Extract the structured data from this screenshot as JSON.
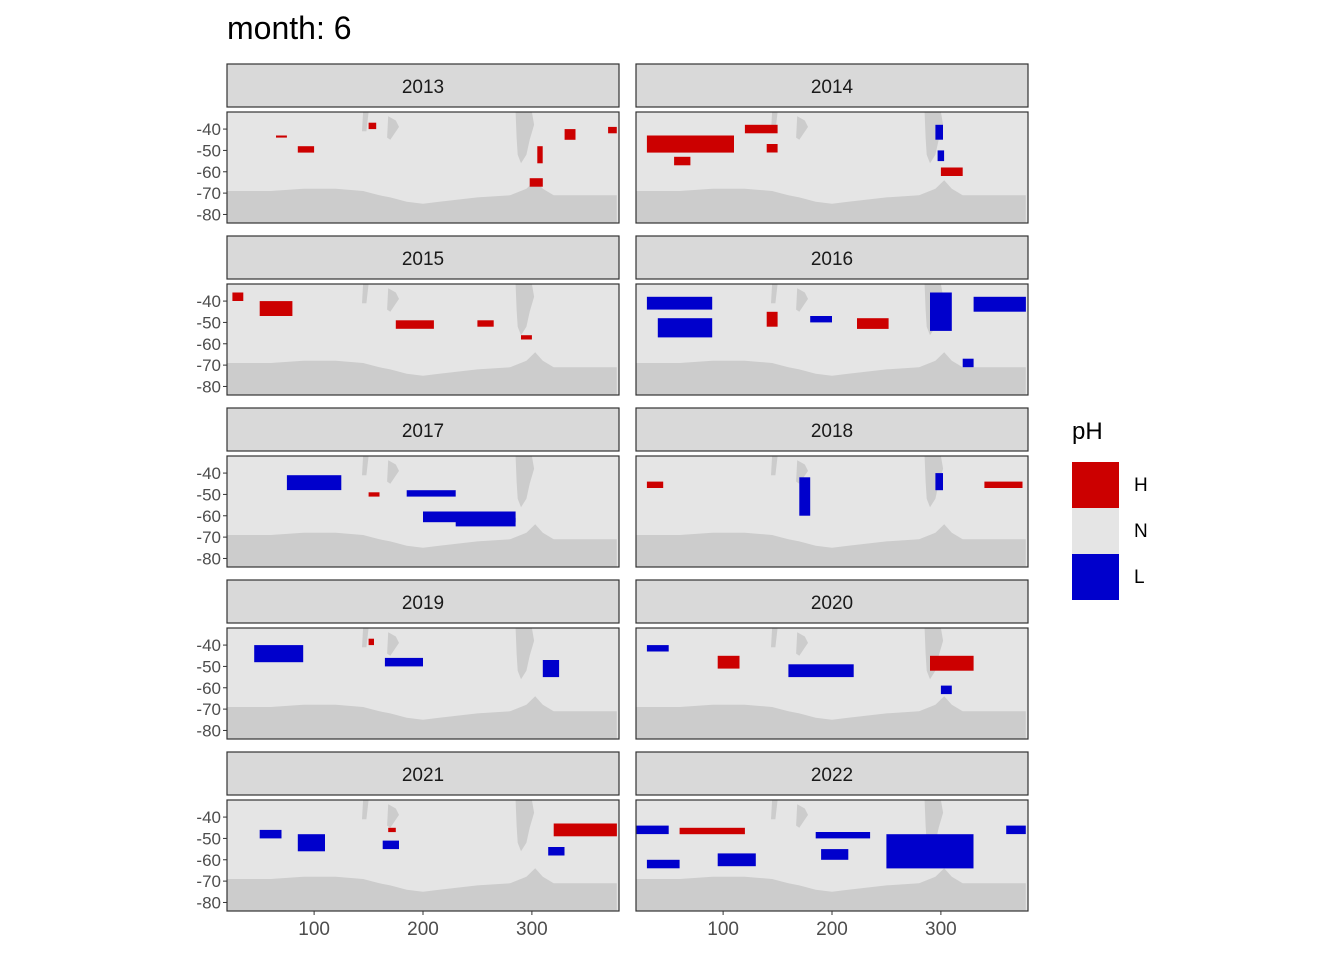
{
  "title": "month: 6",
  "legend": {
    "title": "pH",
    "items": [
      {
        "label": "H",
        "color": "#CC0000"
      },
      {
        "label": "N",
        "color": "#E5E5E5"
      },
      {
        "label": "L",
        "color": "#0000CC"
      }
    ]
  },
  "colors": {
    "land": "#CCCCCC",
    "ocean": "#E5E5E5",
    "strip_bg": "#D9D9D9",
    "frame": "#333333",
    "tick_text": "#4D4D4D"
  },
  "chart_data": {
    "type": "heatmap",
    "facet_by": "year",
    "panels": [
      "2013",
      "2014",
      "2015",
      "2016",
      "2017",
      "2018",
      "2019",
      "2020",
      "2021",
      "2022"
    ],
    "x_ticks": [
      100,
      200,
      300
    ],
    "y_ticks": [
      -40,
      -50,
      -60,
      -70,
      -80
    ],
    "xlim": [
      20,
      380
    ],
    "ylim": [
      -84,
      -32
    ],
    "categories": [
      "H",
      "N",
      "L"
    ],
    "anomalies": {
      "2013": [
        {
          "cat": "H",
          "x": [
            65,
            75
          ],
          "y": [
            -43,
            -44
          ]
        },
        {
          "cat": "H",
          "x": [
            85,
            100
          ],
          "y": [
            -48,
            -51
          ]
        },
        {
          "cat": "H",
          "x": [
            150,
            157
          ],
          "y": [
            -37,
            -40
          ]
        },
        {
          "cat": "H",
          "x": [
            305,
            310
          ],
          "y": [
            -48,
            -56
          ]
        },
        {
          "cat": "H",
          "x": [
            298,
            310
          ],
          "y": [
            -63,
            -67
          ]
        },
        {
          "cat": "H",
          "x": [
            330,
            340
          ],
          "y": [
            -40,
            -45
          ]
        },
        {
          "cat": "H",
          "x": [
            370,
            378
          ],
          "y": [
            -39,
            -42
          ]
        }
      ],
      "2014": [
        {
          "cat": "H",
          "x": [
            30,
            110
          ],
          "y": [
            -43,
            -51
          ]
        },
        {
          "cat": "H",
          "x": [
            55,
            70
          ],
          "y": [
            -53,
            -57
          ]
        },
        {
          "cat": "H",
          "x": [
            120,
            150
          ],
          "y": [
            -38,
            -42
          ]
        },
        {
          "cat": "H",
          "x": [
            140,
            150
          ],
          "y": [
            -47,
            -51
          ]
        },
        {
          "cat": "H",
          "x": [
            300,
            320
          ],
          "y": [
            -58,
            -62
          ]
        },
        {
          "cat": "L",
          "x": [
            295,
            302
          ],
          "y": [
            -38,
            -45
          ]
        },
        {
          "cat": "L",
          "x": [
            297,
            303
          ],
          "y": [
            -50,
            -55
          ]
        }
      ],
      "2015": [
        {
          "cat": "H",
          "x": [
            25,
            35
          ],
          "y": [
            -36,
            -40
          ]
        },
        {
          "cat": "H",
          "x": [
            50,
            80
          ],
          "y": [
            -40,
            -47
          ]
        },
        {
          "cat": "H",
          "x": [
            175,
            210
          ],
          "y": [
            -49,
            -53
          ]
        },
        {
          "cat": "H",
          "x": [
            250,
            265
          ],
          "y": [
            -49,
            -52
          ]
        },
        {
          "cat": "H",
          "x": [
            290,
            300
          ],
          "y": [
            -56,
            -58
          ]
        }
      ],
      "2016": [
        {
          "cat": "L",
          "x": [
            30,
            90
          ],
          "y": [
            -38,
            -44
          ]
        },
        {
          "cat": "L",
          "x": [
            40,
            90
          ],
          "y": [
            -48,
            -57
          ]
        },
        {
          "cat": "H",
          "x": [
            140,
            150
          ],
          "y": [
            -45,
            -52
          ]
        },
        {
          "cat": "H",
          "x": [
            223,
            252
          ],
          "y": [
            -48,
            -53
          ]
        },
        {
          "cat": "L",
          "x": [
            180,
            200
          ],
          "y": [
            -47,
            -50
          ]
        },
        {
          "cat": "L",
          "x": [
            290,
            310
          ],
          "y": [
            -36,
            -54
          ]
        },
        {
          "cat": "L",
          "x": [
            330,
            378
          ],
          "y": [
            -38,
            -45
          ]
        },
        {
          "cat": "L",
          "x": [
            320,
            330
          ],
          "y": [
            -67,
            -71
          ]
        }
      ],
      "2017": [
        {
          "cat": "L",
          "x": [
            75,
            125
          ],
          "y": [
            -41,
            -48
          ]
        },
        {
          "cat": "L",
          "x": [
            185,
            230
          ],
          "y": [
            -48,
            -51
          ]
        },
        {
          "cat": "L",
          "x": [
            200,
            285
          ],
          "y": [
            -58,
            -63
          ]
        },
        {
          "cat": "L",
          "x": [
            230,
            285
          ],
          "y": [
            -61,
            -65
          ]
        },
        {
          "cat": "H",
          "x": [
            150,
            160
          ],
          "y": [
            -49,
            -51
          ]
        }
      ],
      "2018": [
        {
          "cat": "H",
          "x": [
            30,
            45
          ],
          "y": [
            -44,
            -47
          ]
        },
        {
          "cat": "L",
          "x": [
            170,
            180
          ],
          "y": [
            -42,
            -60
          ]
        },
        {
          "cat": "L",
          "x": [
            295,
            302
          ],
          "y": [
            -40,
            -48
          ]
        },
        {
          "cat": "H",
          "x": [
            340,
            375
          ],
          "y": [
            -44,
            -47
          ]
        }
      ],
      "2019": [
        {
          "cat": "L",
          "x": [
            45,
            90
          ],
          "y": [
            -40,
            -48
          ]
        },
        {
          "cat": "H",
          "x": [
            150,
            155
          ],
          "y": [
            -37,
            -40
          ]
        },
        {
          "cat": "L",
          "x": [
            165,
            200
          ],
          "y": [
            -46,
            -50
          ]
        },
        {
          "cat": "L",
          "x": [
            310,
            325
          ],
          "y": [
            -47,
            -55
          ]
        }
      ],
      "2020": [
        {
          "cat": "H",
          "x": [
            95,
            115
          ],
          "y": [
            -45,
            -51
          ]
        },
        {
          "cat": "L",
          "x": [
            160,
            220
          ],
          "y": [
            -49,
            -55
          ]
        },
        {
          "cat": "H",
          "x": [
            290,
            330
          ],
          "y": [
            -45,
            -52
          ]
        },
        {
          "cat": "L",
          "x": [
            30,
            50
          ],
          "y": [
            -40,
            -43
          ]
        },
        {
          "cat": "L",
          "x": [
            300,
            310
          ],
          "y": [
            -59,
            -63
          ]
        }
      ],
      "2021": [
        {
          "cat": "L",
          "x": [
            50,
            70
          ],
          "y": [
            -46,
            -50
          ]
        },
        {
          "cat": "L",
          "x": [
            85,
            110
          ],
          "y": [
            -48,
            -56
          ]
        },
        {
          "cat": "L",
          "x": [
            163,
            178
          ],
          "y": [
            -51,
            -55
          ]
        },
        {
          "cat": "H",
          "x": [
            168,
            175
          ],
          "y": [
            -45,
            -47
          ]
        },
        {
          "cat": "H",
          "x": [
            320,
            378
          ],
          "y": [
            -43,
            -49
          ]
        },
        {
          "cat": "L",
          "x": [
            315,
            330
          ],
          "y": [
            -54,
            -58
          ]
        }
      ],
      "2022": [
        {
          "cat": "L",
          "x": [
            20,
            50
          ],
          "y": [
            -44,
            -48
          ]
        },
        {
          "cat": "H",
          "x": [
            60,
            120
          ],
          "y": [
            -45,
            -48
          ]
        },
        {
          "cat": "L",
          "x": [
            30,
            60
          ],
          "y": [
            -60,
            -64
          ]
        },
        {
          "cat": "L",
          "x": [
            95,
            130
          ],
          "y": [
            -57,
            -63
          ]
        },
        {
          "cat": "L",
          "x": [
            185,
            235
          ],
          "y": [
            -47,
            -50
          ]
        },
        {
          "cat": "L",
          "x": [
            190,
            215
          ],
          "y": [
            -55,
            -60
          ]
        },
        {
          "cat": "L",
          "x": [
            250,
            330
          ],
          "y": [
            -48,
            -64
          ]
        },
        {
          "cat": "L",
          "x": [
            360,
            378
          ],
          "y": [
            -44,
            -48
          ]
        }
      ]
    }
  }
}
